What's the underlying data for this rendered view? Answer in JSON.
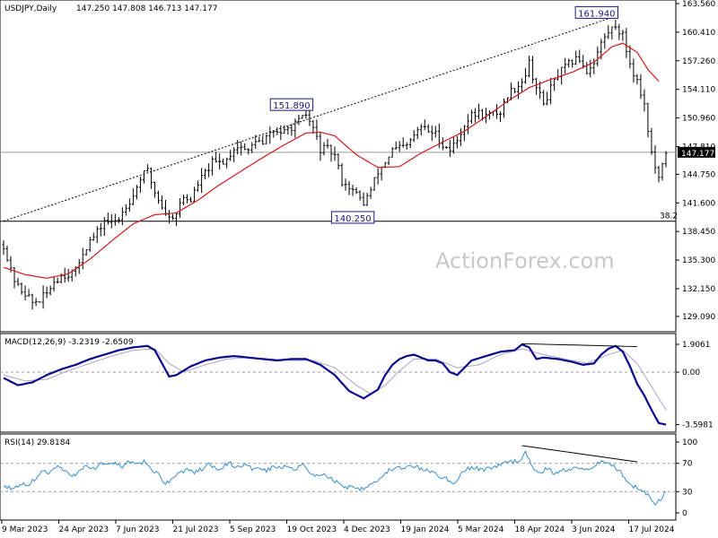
{
  "chart_data": {
    "type": "candlestick",
    "header": {
      "symbol": "USDJPY,Daily",
      "ohlc": "147.250 147.808 146.713 147.177"
    },
    "watermark": "ActionForex.com",
    "colors": {
      "price_bars": "#000000",
      "moving_average": "#d11a1a",
      "macd_line": "#0a0a8c",
      "macd_signal": "#b0a0c8",
      "rsi_line": "#3a8fd0",
      "trendline": "#000000",
      "label_box": "#1a1a7a"
    },
    "price_axis": {
      "ylim": [
        127.6,
        163.56
      ],
      "ticks": [
        "163.560",
        "160.410",
        "157.260",
        "154.110",
        "150.960",
        "147.810",
        "144.750",
        "141.600",
        "138.450",
        "135.300",
        "132.150",
        "129.090"
      ],
      "current_price_label": "147.177"
    },
    "x_axis": {
      "ticks": [
        "9 Mar 2023",
        "24 Apr 2023",
        "7 Jun 2023",
        "21 Jul 2023",
        "5 Sep 2023",
        "19 Oct 2023",
        "4 Dec 2023",
        "19 Jan 2024",
        "5 Mar 2024",
        "18 Apr 2024",
        "3 Jun 2024",
        "17 Jul 2024"
      ]
    },
    "annotations": {
      "high_label": "161.940",
      "mid_label": "151.890",
      "low_label": "140.250",
      "fib_label": "38.2",
      "fib_level": 139.58
    },
    "price_series": {
      "name": "USDJPY",
      "points": [
        [
          0,
          137.0
        ],
        [
          4,
          134.0
        ],
        [
          8,
          132.3
        ],
        [
          12,
          131.7
        ],
        [
          16,
          130.6
        ],
        [
          20,
          130.9
        ],
        [
          24,
          131.6
        ],
        [
          28,
          133.0
        ],
        [
          32,
          133.6
        ],
        [
          36,
          133.8
        ],
        [
          40,
          134.0
        ],
        [
          44,
          136.2
        ],
        [
          48,
          137.4
        ],
        [
          52,
          138.3
        ],
        [
          56,
          139.7
        ],
        [
          60,
          139.3
        ],
        [
          64,
          139.9
        ],
        [
          68,
          141.4
        ],
        [
          72,
          142.4
        ],
        [
          76,
          144.4
        ],
        [
          80,
          145.1
        ],
        [
          84,
          142.8
        ],
        [
          88,
          141.2
        ],
        [
          92,
          139.9
        ],
        [
          96,
          140.6
        ],
        [
          100,
          142.2
        ],
        [
          104,
          141.9
        ],
        [
          108,
          143.7
        ],
        [
          112,
          144.9
        ],
        [
          116,
          146.0
        ],
        [
          120,
          146.0
        ],
        [
          124,
          146.4
        ],
        [
          128,
          147.7
        ],
        [
          132,
          147.8
        ],
        [
          136,
          147.2
        ],
        [
          140,
          148.6
        ],
        [
          144,
          148.0
        ],
        [
          148,
          149.4
        ],
        [
          152,
          149.5
        ],
        [
          156,
          149.3
        ],
        [
          160,
          150.0
        ],
        [
          164,
          150.5
        ],
        [
          168,
          151.3
        ],
        [
          172,
          149.8
        ],
        [
          176,
          147.5
        ],
        [
          180,
          147.5
        ],
        [
          184,
          146.8
        ],
        [
          188,
          144.0
        ],
        [
          192,
          143.4
        ],
        [
          196,
          142.5
        ],
        [
          200,
          141.6
        ],
        [
          204,
          143.0
        ],
        [
          208,
          145.0
        ],
        [
          212,
          146.1
        ],
        [
          216,
          147.4
        ],
        [
          220,
          147.6
        ],
        [
          224,
          147.8
        ],
        [
          228,
          149.0
        ],
        [
          232,
          150.0
        ],
        [
          236,
          149.5
        ],
        [
          240,
          149.2
        ],
        [
          244,
          148.0
        ],
        [
          248,
          147.5
        ],
        [
          252,
          148.5
        ],
        [
          256,
          150.3
        ],
        [
          260,
          151.2
        ],
        [
          264,
          151.5
        ],
        [
          268,
          151.2
        ],
        [
          272,
          151.4
        ],
        [
          276,
          151.6
        ],
        [
          280,
          153.5
        ],
        [
          284,
          154.3
        ],
        [
          288,
          155.0
        ],
        [
          292,
          157.0
        ],
        [
          296,
          154.3
        ],
        [
          300,
          152.5
        ],
        [
          304,
          154.2
        ],
        [
          308,
          155.7
        ],
        [
          312,
          156.5
        ],
        [
          316,
          157.2
        ],
        [
          320,
          157.5
        ],
        [
          324,
          156.1
        ],
        [
          328,
          157.2
        ],
        [
          332,
          159.2
        ],
        [
          336,
          160.4
        ],
        [
          340,
          161.2
        ],
        [
          344,
          160.0
        ],
        [
          348,
          157.0
        ],
        [
          352,
          155.0
        ],
        [
          356,
          152.5
        ],
        [
          360,
          147.0
        ],
        [
          364,
          144.0
        ],
        [
          368,
          147.2
        ]
      ],
      "n_points": 368
    },
    "ma_series": {
      "name": "MA",
      "points": [
        [
          0,
          134.5
        ],
        [
          12,
          133.7
        ],
        [
          24,
          133.3
        ],
        [
          36,
          133.8
        ],
        [
          48,
          135.4
        ],
        [
          60,
          137.4
        ],
        [
          72,
          139.3
        ],
        [
          84,
          140.3
        ],
        [
          96,
          140.5
        ],
        [
          108,
          141.9
        ],
        [
          120,
          143.6
        ],
        [
          132,
          145.1
        ],
        [
          144,
          146.6
        ],
        [
          156,
          148.0
        ],
        [
          168,
          149.3
        ],
        [
          176,
          149.4
        ],
        [
          184,
          149.0
        ],
        [
          196,
          146.9
        ],
        [
          208,
          145.5
        ],
        [
          220,
          145.6
        ],
        [
          232,
          147.1
        ],
        [
          244,
          148.3
        ],
        [
          256,
          149.5
        ],
        [
          268,
          151.1
        ],
        [
          280,
          152.8
        ],
        [
          292,
          154.3
        ],
        [
          304,
          155.2
        ],
        [
          316,
          156.0
        ],
        [
          328,
          157.1
        ],
        [
          338,
          158.8
        ],
        [
          344,
          159.2
        ],
        [
          352,
          158.2
        ],
        [
          358,
          156.3
        ],
        [
          364,
          155.0
        ]
      ]
    },
    "trendlines": [
      {
        "from": [
          0,
          139.6
        ],
        "to": [
          336,
          161.9
        ],
        "style": "dotted"
      }
    ],
    "macd": {
      "header": "MACD(12,26,9) -3.2319 -2.6509",
      "ylim": [
        -4.0,
        2.4
      ],
      "ticks": [
        "1.9061",
        "0.00",
        "-3.5981"
      ],
      "macd_line": [
        [
          0,
          -0.4
        ],
        [
          8,
          -0.9
        ],
        [
          16,
          -0.7
        ],
        [
          24,
          -0.2
        ],
        [
          32,
          0.2
        ],
        [
          40,
          0.5
        ],
        [
          48,
          0.9
        ],
        [
          56,
          1.2
        ],
        [
          64,
          1.5
        ],
        [
          72,
          1.7
        ],
        [
          80,
          1.8
        ],
        [
          84,
          1.5
        ],
        [
          88,
          0.6
        ],
        [
          92,
          -0.3
        ],
        [
          96,
          -0.2
        ],
        [
          100,
          0.1
        ],
        [
          104,
          0.4
        ],
        [
          112,
          0.8
        ],
        [
          120,
          1.0
        ],
        [
          128,
          1.1
        ],
        [
          136,
          1.0
        ],
        [
          144,
          0.9
        ],
        [
          152,
          0.8
        ],
        [
          160,
          0.9
        ],
        [
          168,
          0.9
        ],
        [
          176,
          0.5
        ],
        [
          184,
          -0.2
        ],
        [
          192,
          -1.3
        ],
        [
          200,
          -1.8
        ],
        [
          208,
          -1.2
        ],
        [
          212,
          -0.2
        ],
        [
          216,
          0.5
        ],
        [
          220,
          0.9
        ],
        [
          224,
          1.1
        ],
        [
          228,
          1.2
        ],
        [
          232,
          1.0
        ],
        [
          236,
          0.8
        ],
        [
          240,
          0.8
        ],
        [
          244,
          0.6
        ],
        [
          248,
          0.0
        ],
        [
          252,
          -0.2
        ],
        [
          256,
          0.3
        ],
        [
          260,
          0.8
        ],
        [
          268,
          1.1
        ],
        [
          276,
          1.4
        ],
        [
          284,
          1.5
        ],
        [
          288,
          1.9
        ],
        [
          292,
          1.7
        ],
        [
          296,
          0.9
        ],
        [
          300,
          1.0
        ],
        [
          308,
          0.9
        ],
        [
          316,
          0.7
        ],
        [
          322,
          0.5
        ],
        [
          328,
          0.6
        ],
        [
          332,
          1.2
        ],
        [
          336,
          1.6
        ],
        [
          340,
          1.8
        ],
        [
          344,
          1.4
        ],
        [
          348,
          0.4
        ],
        [
          352,
          -0.8
        ],
        [
          356,
          -1.6
        ],
        [
          360,
          -2.6
        ],
        [
          364,
          -3.5
        ],
        [
          368,
          -3.6
        ]
      ],
      "signal_line": [
        [
          0,
          -0.2
        ],
        [
          12,
          -0.6
        ],
        [
          24,
          -0.5
        ],
        [
          36,
          0.1
        ],
        [
          48,
          0.6
        ],
        [
          60,
          1.1
        ],
        [
          72,
          1.5
        ],
        [
          84,
          1.6
        ],
        [
          92,
          0.6
        ],
        [
          100,
          0.0
        ],
        [
          112,
          0.5
        ],
        [
          124,
          0.9
        ],
        [
          136,
          1.0
        ],
        [
          148,
          0.9
        ],
        [
          160,
          0.8
        ],
        [
          172,
          0.8
        ],
        [
          184,
          0.3
        ],
        [
          196,
          -0.9
        ],
        [
          204,
          -1.5
        ],
        [
          212,
          -0.9
        ],
        [
          220,
          0.1
        ],
        [
          228,
          0.9
        ],
        [
          240,
          0.9
        ],
        [
          252,
          0.3
        ],
        [
          264,
          0.5
        ],
        [
          276,
          1.2
        ],
        [
          288,
          1.6
        ],
        [
          300,
          1.2
        ],
        [
          312,
          0.9
        ],
        [
          324,
          0.6
        ],
        [
          336,
          1.2
        ],
        [
          344,
          1.5
        ],
        [
          352,
          0.6
        ],
        [
          360,
          -1.0
        ],
        [
          368,
          -2.6
        ]
      ],
      "divergence": {
        "from": [
          288,
          1.95
        ],
        "to": [
          352,
          1.75
        ]
      }
    },
    "rsi": {
      "header": "RSI(14) 29.8184",
      "ylim": [
        0,
        100
      ],
      "ticks": [
        "100",
        "70",
        "30",
        "0"
      ],
      "levels": [
        70,
        30
      ],
      "line": [
        [
          0,
          38
        ],
        [
          6,
          34
        ],
        [
          10,
          42
        ],
        [
          14,
          40
        ],
        [
          18,
          50
        ],
        [
          22,
          60
        ],
        [
          26,
          56
        ],
        [
          30,
          66
        ],
        [
          34,
          60
        ],
        [
          38,
          52
        ],
        [
          42,
          58
        ],
        [
          46,
          66
        ],
        [
          50,
          62
        ],
        [
          54,
          70
        ],
        [
          58,
          66
        ],
        [
          62,
          70
        ],
        [
          66,
          66
        ],
        [
          70,
          72
        ],
        [
          74,
          68
        ],
        [
          78,
          72
        ],
        [
          82,
          62
        ],
        [
          86,
          54
        ],
        [
          90,
          42
        ],
        [
          94,
          48
        ],
        [
          98,
          58
        ],
        [
          102,
          60
        ],
        [
          106,
          56
        ],
        [
          110,
          62
        ],
        [
          114,
          68
        ],
        [
          118,
          62
        ],
        [
          122,
          66
        ],
        [
          126,
          70
        ],
        [
          130,
          64
        ],
        [
          134,
          68
        ],
        [
          138,
          62
        ],
        [
          142,
          66
        ],
        [
          146,
          60
        ],
        [
          150,
          66
        ],
        [
          154,
          64
        ],
        [
          158,
          66
        ],
        [
          162,
          62
        ],
        [
          166,
          70
        ],
        [
          170,
          58
        ],
        [
          174,
          52
        ],
        [
          178,
          54
        ],
        [
          182,
          48
        ],
        [
          186,
          42
        ],
        [
          190,
          36
        ],
        [
          194,
          38
        ],
        [
          198,
          34
        ],
        [
          202,
          38
        ],
        [
          206,
          44
        ],
        [
          210,
          50
        ],
        [
          214,
          60
        ],
        [
          218,
          64
        ],
        [
          222,
          62
        ],
        [
          226,
          66
        ],
        [
          230,
          64
        ],
        [
          234,
          60
        ],
        [
          238,
          58
        ],
        [
          242,
          52
        ],
        [
          246,
          48
        ],
        [
          250,
          40
        ],
        [
          254,
          56
        ],
        [
          258,
          62
        ],
        [
          262,
          64
        ],
        [
          266,
          60
        ],
        [
          270,
          64
        ],
        [
          274,
          66
        ],
        [
          278,
          70
        ],
        [
          282,
          72
        ],
        [
          286,
          74
        ],
        [
          290,
          84
        ],
        [
          294,
          64
        ],
        [
          298,
          58
        ],
        [
          302,
          62
        ],
        [
          306,
          56
        ],
        [
          310,
          60
        ],
        [
          314,
          62
        ],
        [
          318,
          66
        ],
        [
          322,
          62
        ],
        [
          326,
          64
        ],
        [
          330,
          70
        ],
        [
          334,
          72
        ],
        [
          338,
          68
        ],
        [
          342,
          60
        ],
        [
          346,
          48
        ],
        [
          350,
          38
        ],
        [
          354,
          34
        ],
        [
          358,
          26
        ],
        [
          362,
          14
        ],
        [
          366,
          22
        ],
        [
          368,
          30
        ]
      ],
      "divergence": {
        "from": [
          288,
          95
        ],
        "to": [
          352,
          72
        ]
      }
    }
  }
}
